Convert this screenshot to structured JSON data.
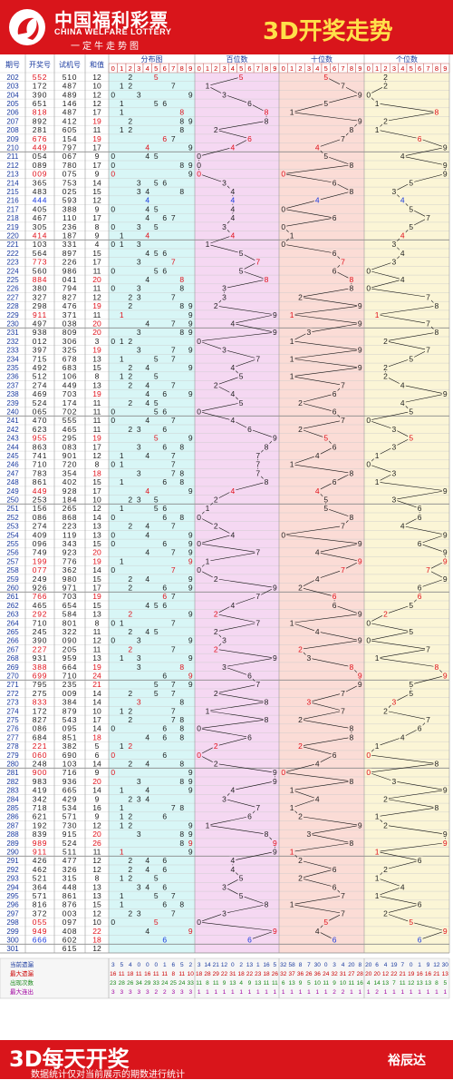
{
  "brand": {
    "name_cn": "中国福利彩票",
    "name_en": "CHINA WELFARE LOTTERY",
    "slogan": "一定牛走势图"
  },
  "title": "3D开奖走势",
  "footer": {
    "title": "3D每天开奖",
    "note": "数据统计仅对当前展示的期数进行统计",
    "author": "裕辰达"
  },
  "headers": {
    "period": "期号",
    "draw": "开奖号",
    "trial": "试机号",
    "sum": "和值",
    "distribution": "分布图",
    "hundreds": "百位数",
    "tens": "十位数",
    "units": "个位数"
  },
  "colors": {
    "accent": "#d9151b",
    "title_yellow": "#ffe04a",
    "dist_bg": "#d8f6f6",
    "hundreds_bg": "#f5d8f2",
    "tens_bg": "#fbdcd6",
    "units_bg": "#fbf5d6",
    "hit_red": "#e0101a",
    "hit_blue": "#1a3adf"
  },
  "stat_labels": [
    "当前遗漏",
    "最大遗漏",
    "出现次数",
    "最大连出"
  ],
  "stats": {
    "distribution": [
      [
        3,
        5,
        4,
        0,
        0,
        0,
        1,
        6,
        5,
        2
      ],
      [
        16,
        11,
        18,
        11,
        16,
        11,
        11,
        8,
        11,
        10
      ],
      [
        23,
        28,
        26,
        34,
        29,
        33,
        24,
        25,
        24,
        33
      ],
      [
        3,
        3,
        3,
        3,
        3,
        2,
        2,
        3,
        3,
        3
      ]
    ],
    "hundreds": [
      [
        3,
        14,
        21,
        12,
        0,
        2,
        13,
        1,
        16,
        5
      ],
      [
        18,
        28,
        29,
        22,
        31,
        18,
        22,
        23,
        18,
        26
      ],
      [
        11,
        8,
        11,
        9,
        13,
        4,
        9,
        13,
        11,
        11
      ],
      [
        1,
        1,
        1,
        1,
        1,
        1,
        1,
        1,
        1,
        1
      ]
    ],
    "tens": [
      [
        32,
        58,
        8,
        7,
        30,
        0,
        3,
        4,
        20,
        8
      ],
      [
        32,
        37,
        36,
        26,
        36,
        24,
        32,
        31,
        27,
        28
      ],
      [
        6,
        13,
        9,
        5,
        10,
        11,
        9,
        10,
        11,
        16
      ],
      [
        1,
        1,
        1,
        1,
        1,
        1,
        2,
        2,
        1,
        1
      ]
    ],
    "units": [
      [
        20,
        6,
        4,
        19,
        7,
        0,
        1,
        9,
        12,
        30
      ],
      [
        20,
        20,
        12,
        22,
        21,
        19,
        16,
        16,
        21,
        13
      ],
      [
        4,
        14,
        13,
        7,
        11,
        12,
        13,
        13,
        8,
        5
      ],
      [
        1,
        2,
        1,
        1,
        1,
        1,
        1,
        1,
        1,
        1
      ]
    ]
  },
  "chart_data": {
    "type": "table",
    "periods": [
      "202",
      "203",
      "204",
      "205",
      "206",
      "207",
      "208",
      "209",
      "210",
      "211",
      "212",
      "213",
      "214",
      "215",
      "216",
      "217",
      "218",
      "219",
      "220",
      "221",
      "222",
      "223",
      "224",
      "225",
      "226",
      "227",
      "228",
      "229",
      "230",
      "231",
      "232",
      "233",
      "234",
      "235",
      "236",
      "237",
      "238",
      "239",
      "240",
      "241",
      "242",
      "243",
      "244",
      "245",
      "246",
      "247",
      "248",
      "249",
      "250",
      "251",
      "252",
      "253",
      "254",
      "255",
      "256",
      "257",
      "258",
      "259",
      "260",
      "261",
      "262",
      "263",
      "264",
      "265",
      "266",
      "267",
      "268",
      "269",
      "270",
      "271",
      "272",
      "273",
      "274",
      "275",
      "276",
      "277",
      "278",
      "279",
      "280",
      "281",
      "282",
      "283",
      "284",
      "285",
      "286",
      "287",
      "288",
      "289",
      "290",
      "291",
      "292",
      "293",
      "294",
      "295",
      "296",
      "297",
      "298",
      "299",
      "300",
      "301"
    ],
    "draws": [
      "552",
      "172",
      "390",
      "651",
      "818",
      "892",
      "281",
      "676",
      "449",
      "054",
      "089",
      "009",
      "365",
      "483",
      "444",
      "405",
      "467",
      "305",
      "414",
      "103",
      "564",
      "773",
      "560",
      "884",
      "380",
      "327",
      "298",
      "911",
      "497",
      "938",
      "012",
      "397",
      "715",
      "492",
      "512",
      "274",
      "469",
      "524",
      "065",
      "470",
      "623",
      "955",
      "863",
      "741",
      "710",
      "783",
      "861",
      "449",
      "253",
      "156",
      "086",
      "274",
      "409",
      "096",
      "749",
      "199",
      "077",
      "249",
      "926",
      "766",
      "465",
      "292",
      "710",
      "245",
      "390",
      "227",
      "931",
      "388",
      "699",
      "795",
      "275",
      "833",
      "172",
      "827",
      "086",
      "684",
      "221",
      "060",
      "248",
      "900",
      "983",
      "419",
      "342",
      "718",
      "621",
      "192",
      "839",
      "989",
      "911",
      "426",
      "462",
      "521",
      "364",
      "571",
      "816",
      "372",
      "055",
      "949",
      "666"
    ],
    "trials": [
      "510",
      "487",
      "489",
      "146",
      "487",
      "412",
      "605",
      "154",
      "797",
      "067",
      "780",
      "075",
      "753",
      "025",
      "593",
      "388",
      "110",
      "236",
      "187",
      "331",
      "897",
      "226",
      "986",
      "041",
      "794",
      "827",
      "476",
      "371",
      "038",
      "809",
      "306",
      "325",
      "678",
      "683",
      "106",
      "449",
      "703",
      "174",
      "702",
      "555",
      "465",
      "295",
      "083",
      "901",
      "720",
      "354",
      "402",
      "928",
      "184",
      "265",
      "868",
      "223",
      "119",
      "343",
      "923",
      "776",
      "362",
      "980",
      "971",
      "703",
      "654",
      "584",
      "801",
      "322",
      "090",
      "205",
      "959",
      "664",
      "710",
      "235",
      "009",
      "384",
      "879",
      "543",
      "095",
      "851",
      "382",
      "690",
      "103",
      "716",
      "936",
      "665",
      "429",
      "534",
      "571",
      "730",
      "915",
      "524",
      "511",
      "477",
      "326",
      "315",
      "448",
      "861",
      "876",
      "003",
      "097",
      "408",
      "602",
      "615"
    ],
    "sums": [
      "12",
      "10",
      "12",
      "12",
      "17",
      "19",
      "11",
      "19",
      "17",
      "9",
      "17",
      "9",
      "14",
      "15",
      "12",
      "9",
      "17",
      "8",
      "9",
      "4",
      "15",
      "17",
      "11",
      "20",
      "11",
      "12",
      "19",
      "11",
      "20",
      "20",
      "3",
      "19",
      "13",
      "15",
      "8",
      "13",
      "19",
      "11",
      "11",
      "11",
      "11",
      "19",
      "17",
      "12",
      "8",
      "18",
      "15",
      "17",
      "10",
      "12",
      "14",
      "13",
      "13",
      "15",
      "20",
      "19",
      "14",
      "15",
      "17",
      "19",
      "15",
      "13",
      "8",
      "11",
      "12",
      "11",
      "13",
      "19",
      "24",
      "21",
      "14",
      "14",
      "10",
      "17",
      "14",
      "18",
      "5",
      "6",
      "14",
      "9",
      "20",
      "14",
      "9",
      "16",
      "9",
      "12",
      "20",
      "26",
      "11",
      "12",
      "12",
      "8",
      "13",
      "13",
      "15",
      "12",
      "10",
      "22",
      "18"
    ],
    "trial_sum_last": "12",
    "distribution_digits": [
      "0",
      "1",
      "2",
      "3",
      "4",
      "5",
      "6",
      "7",
      "8",
      "9"
    ],
    "note": "Each row: period, winning number, trial number, sum; hundreds/tens/units columns mark the drawn digit per position."
  }
}
